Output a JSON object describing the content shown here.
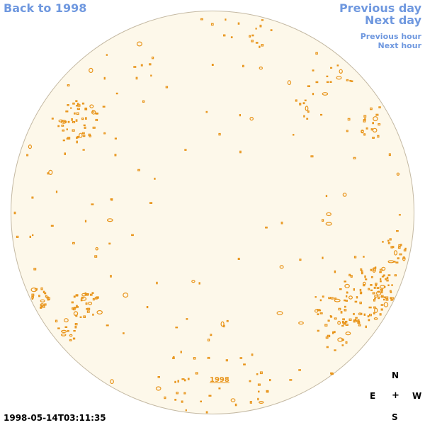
{
  "nav": {
    "back_label": "Back to 1998",
    "prev_day_label": "Previous day",
    "next_day_label": "Next day",
    "prev_hour_label": "Previous hour",
    "next_hour_label": "Next hour"
  },
  "map": {
    "year_link": "1998",
    "timestamp": "1998-05-14T03:11:35",
    "disk_fill": "#fdf8ea",
    "disk_stroke": "#c4b9a3",
    "feature_color": "#e8941a"
  },
  "compass": {
    "north": "N",
    "south": "S",
    "east": "E",
    "west": "W",
    "center": "+"
  }
}
